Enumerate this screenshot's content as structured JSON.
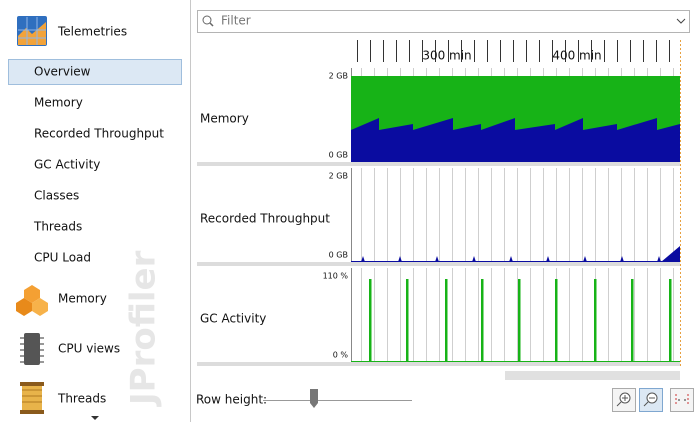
{
  "sidebar": {
    "title": "Telemetries",
    "items": [
      "Overview",
      "Memory",
      "Recorded Throughput",
      "GC Activity",
      "Classes",
      "Threads",
      "CPU Load"
    ],
    "sections": [
      "Memory",
      "CPU views",
      "Threads"
    ],
    "watermark": "JProfiler"
  },
  "filter": {
    "placeholder": "Filter"
  },
  "time_axis": {
    "labels": [
      "300 min",
      "400 min"
    ]
  },
  "rows": [
    {
      "label": "Memory",
      "top": "2 GB",
      "bottom": "0 GB"
    },
    {
      "label": "Recorded Throughput",
      "top": "2 GB",
      "bottom": "0 GB"
    },
    {
      "label": "GC Activity",
      "top": "110 %",
      "bottom": "0 %"
    }
  ],
  "footer": {
    "row_height": "Row height:"
  }
}
